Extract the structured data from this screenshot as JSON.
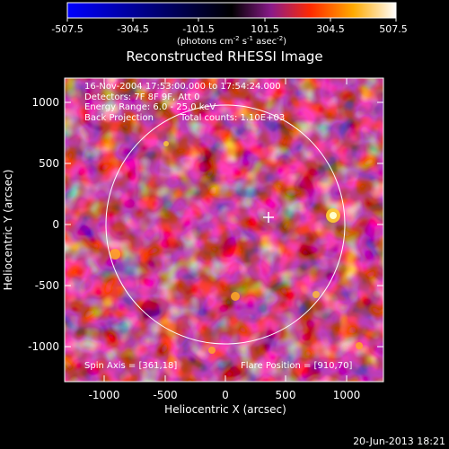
{
  "colorbar": {
    "ticks": [
      "-507.5",
      "-304.5",
      "-101.5",
      "101.5",
      "304.5",
      "507.5"
    ],
    "units_main": "(photons cm",
    "units_exp1": "-2",
    "units_mid": " s",
    "units_exp2": "-1",
    "units_mid2": " asec",
    "units_exp3": "-2",
    "units_end": ")"
  },
  "title": "Reconstructed RHESSI Image",
  "header_lines": {
    "time": "16-Nov-2004 17:53:00.000 to 17:54:24.000",
    "detectors": "Detectors: 7F 8F 9F, Att 0",
    "energy": "Energy Range: 6.0 - 25.0 keV",
    "method": "Back Projection",
    "counts": "Total counts: 1.10E+03"
  },
  "footer_lines": {
    "spin_axis": "Spin Axis = [361,18]",
    "flare_position": "Flare Position = [910,70]"
  },
  "axes": {
    "xlabel": "Heliocentric X (arcsec)",
    "ylabel": "Heliocentric Y (arcsec)",
    "x_ticks": [
      "-1000",
      "-500",
      "0",
      "500",
      "1000"
    ],
    "y_ticks": [
      "1000",
      "500",
      "0",
      "-500",
      "-1000"
    ]
  },
  "timestamp": "20-Jun-2013 18:21",
  "colors": {
    "background": "#000000",
    "foreground": "#ffffff",
    "colormap": [
      "#0000ff",
      "#000000",
      "#ff0000",
      "#ffff00",
      "#ffffff"
    ]
  }
}
